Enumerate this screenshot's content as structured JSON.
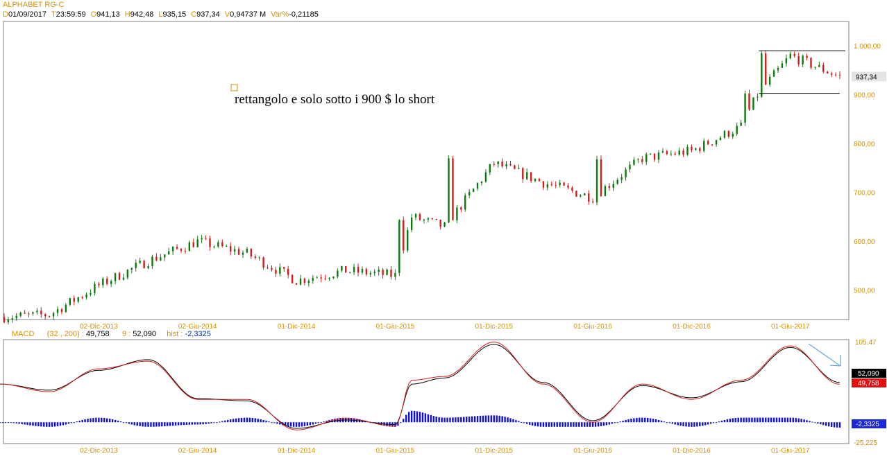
{
  "header": {
    "instrument": "ALPHABET RG-C",
    "ohlc": [
      {
        "key": "D",
        "value": "01/09/2017"
      },
      {
        "key": "T",
        "value": "23:59:59"
      },
      {
        "key": "O",
        "value": "941,13"
      },
      {
        "key": "H",
        "value": "942,48"
      },
      {
        "key": "L",
        "value": "935,15"
      },
      {
        "key": "C",
        "value": "937,34"
      },
      {
        "key": "V",
        "value": "0,94737 M"
      },
      {
        "key": "Var%",
        "value": "-0,21185"
      }
    ]
  },
  "annotation": "rettangolo e solo sotto i 900 $ lo short",
  "price_label": "937,34",
  "x_ticks": [
    "02-Dic-2013",
    "02-Giu-2014",
    "01-Dic-2014",
    "01-Giu-2015",
    "01-Dic-2015",
    "01-Giu-2016",
    "01-Dic-2016",
    "01-Giu-2017"
  ],
  "price_ticks": [
    "1.000,00",
    "900,00",
    "800,00",
    "700,00",
    "600,00",
    "500,00"
  ],
  "macd": {
    "label": "MACD",
    "params": "(32 , 200) :",
    "macd_value": "49,758",
    "signal_period": "9 :",
    "signal_value": "52,090",
    "hist_label": "hist :",
    "hist_value": "-2,3325",
    "top_label": "105,47",
    "bottom_label": "-25,225"
  },
  "colors": {
    "up": "#0b7a0b",
    "down": "#d41a1a",
    "macd_line": "#d41a1a",
    "signal_line": "#000000",
    "histogram": "#1010d8",
    "axis_text": "#d49000",
    "trend_arrow": "#4a90d9"
  },
  "chart_data": [
    {
      "type": "candlestick",
      "title": "ALPHABET RG-C",
      "x": [
        "2013-06",
        "2013-09",
        "2013-12",
        "2014-03",
        "2014-06",
        "2014-09",
        "2014-12",
        "2015-03",
        "2015-06",
        "2015-07",
        "2015-09",
        "2015-12",
        "2016-03",
        "2016-06",
        "2016-09",
        "2016-12",
        "2017-03",
        "2017-04",
        "2017-06",
        "2017-09"
      ],
      "close": [
        445,
        450,
        510,
        560,
        600,
        575,
        520,
        540,
        530,
        650,
        630,
        760,
        720,
        690,
        770,
        785,
        835,
        900,
        980,
        937
      ],
      "ylim": [
        440,
        1050
      ],
      "resistance": 990,
      "support": 903,
      "last": 937.34
    },
    {
      "type": "line",
      "title": "MACD",
      "x": [
        "2013-06",
        "2013-09",
        "2013-12",
        "2014-03",
        "2014-06",
        "2014-09",
        "2014-12",
        "2015-03",
        "2015-06",
        "2015-07",
        "2015-09",
        "2015-12",
        "2016-03",
        "2016-06",
        "2016-09",
        "2016-12",
        "2017-03",
        "2017-06",
        "2017-09"
      ],
      "series": [
        {
          "name": "MACD",
          "values": [
            50,
            40,
            70,
            80,
            30,
            30,
            -10,
            5,
            -5,
            55,
            60,
            105,
            50,
            0,
            50,
            30,
            55,
            100,
            49.758
          ]
        },
        {
          "name": "Signal",
          "values": [
            50,
            42,
            68,
            82,
            31,
            28,
            -8,
            3,
            -3,
            50,
            58,
            102,
            52,
            2,
            48,
            32,
            53,
            98,
            52.09
          ]
        },
        {
          "name": "hist",
          "values": [
            0,
            -2,
            2,
            -2,
            -1,
            2,
            -2,
            2,
            -2,
            5,
            2,
            3,
            -2,
            -2,
            2,
            -2,
            2,
            2,
            -2.3325
          ]
        }
      ],
      "ylim": [
        -25.225,
        105.47
      ]
    }
  ]
}
